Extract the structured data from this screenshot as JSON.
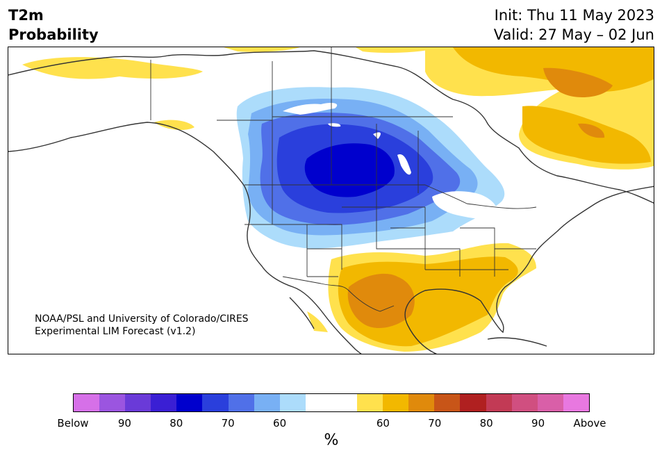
{
  "title": {
    "line1": "T2m",
    "line2": "Probability"
  },
  "info": {
    "init": "Init: Thu 11 May 2023",
    "valid": "Valid: 27 May – 02 Jun"
  },
  "credit": {
    "line1": "NOAA/PSL and University of Colorado/CIRES",
    "line2": "Experimental LIM Forecast (v1.2)"
  },
  "colorbar": {
    "colors": [
      "#d670e8",
      "#9b55e0",
      "#6a3ad8",
      "#3a1fd4",
      "#0000cd",
      "#2a3fdc",
      "#5070e8",
      "#78b0f4",
      "#acdcfb",
      "#ffffff",
      "#ffffff",
      "#ffe14d",
      "#f2b800",
      "#e08a0c",
      "#c85518",
      "#b02020",
      "#c23a55",
      "#d04f80",
      "#d95fa8",
      "#e878e0"
    ],
    "tick_labels": [
      "Below",
      "90",
      "80",
      "70",
      "60",
      "60",
      "70",
      "80",
      "90",
      "Above"
    ],
    "unit": "%"
  },
  "map_colors": {
    "land": "#ffffff",
    "coast": "#333333",
    "cold_60": "#acdcfb",
    "cold_70": "#78b0f4",
    "cold_75": "#5070e8",
    "cold_80": "#2a3fdc",
    "cold_90": "#0000cd",
    "warm_60": "#ffe14d",
    "warm_70": "#f2b800",
    "warm_80": "#e08a0c"
  }
}
